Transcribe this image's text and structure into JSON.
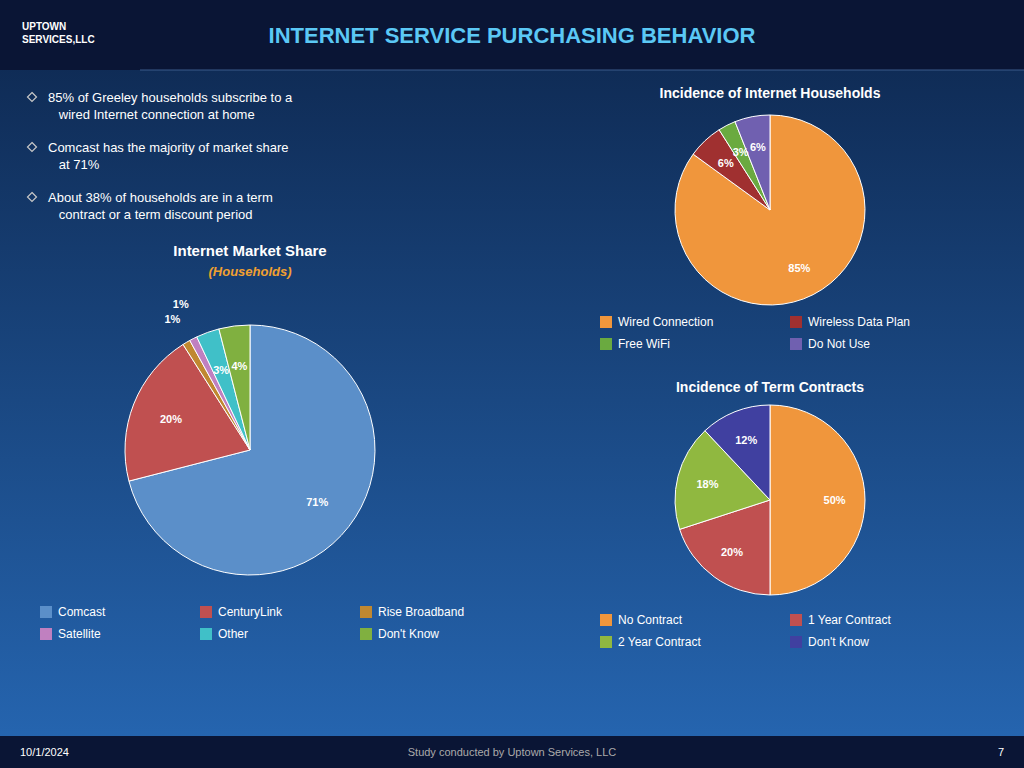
{
  "title": "INTERNET SERVICE PURCHASING BEHAVIOR",
  "annotations": [
    {
      "text": "UPTOWN\nSERVICES,LLC"
    },
    {
      "text": "85% of Greeley households subscribe to a\n   wired Internet connection at home"
    },
    {
      "text": "Comcast has the majority of market share\n   at 71%"
    },
    {
      "text": "About 38% of households are in a term\n   contract or a term discount period"
    },
    {
      "text": "10/1/2024"
    },
    {
      "text": "Study conducted by Uptown Services, LLC"
    },
    {
      "text": "7"
    }
  ],
  "chart_data": [
    {
      "type": "pie",
      "title": "Incidence of Internet Households",
      "categories": [
        "Wired Connection",
        "Wireless Data Plan",
        "Free WiFi",
        "Do Not Use"
      ],
      "values": [
        85,
        6,
        3,
        6
      ],
      "value_labels": [
        "85%",
        "6%",
        "3%",
        "6%"
      ],
      "colors": [
        "#f0963c",
        "#a03030",
        "#6aaa40",
        "#7060b0"
      ],
      "data_labels": true,
      "legend": "bottom"
    },
    {
      "type": "pie",
      "title": "Internet Market Share",
      "subtitle": "(Households)",
      "categories": [
        "Comcast",
        "CenturyLink",
        "Rise Broadband",
        "Satellite",
        "Other",
        "Don't Know"
      ],
      "values": [
        71,
        20,
        1,
        1,
        3,
        4
      ],
      "value_labels": [
        "71%",
        "20%",
        "1%",
        "1%",
        "3%",
        "4%"
      ],
      "colors": [
        "#5b8fc9",
        "#c05050",
        "#c08830",
        "#c080c0",
        "#40c0c8",
        "#80b040"
      ],
      "data_labels": true,
      "legend": "bottom"
    },
    {
      "type": "pie",
      "title": "Incidence of Term Contracts",
      "categories": [
        "No Contract",
        "1 Year Contract",
        "2 Year Contract",
        "Don't Know"
      ],
      "values": [
        50,
        20,
        18,
        12
      ],
      "value_labels": [
        "50%",
        "20%",
        "18%",
        "12%"
      ],
      "colors": [
        "#f0963c",
        "#c05050",
        "#90b840",
        "#4040a0"
      ],
      "data_labels": true,
      "legend": "bottom"
    }
  ]
}
